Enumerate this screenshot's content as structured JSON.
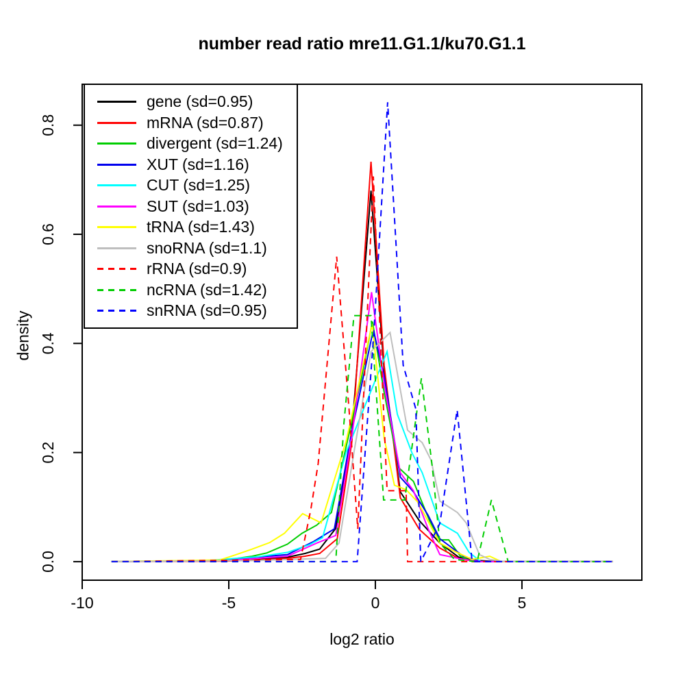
{
  "title": "number read ratio mre11.G1.1/ku70.G1.1",
  "chart_data": {
    "type": "line",
    "title": "number read ratio mre11.G1.1/ku70.G1.1",
    "xlabel": "log2 ratio",
    "ylabel": "density",
    "xlim": [
      -10,
      9.09
    ],
    "ylim": [
      -0.034,
      0.875
    ],
    "x_ticks": [
      {
        "v": -10,
        "label": "-10"
      },
      {
        "v": -5,
        "label": "-5"
      },
      {
        "v": 0,
        "label": "0"
      },
      {
        "v": 5,
        "label": "5"
      }
    ],
    "y_ticks": [
      {
        "v": 0,
        "label": "0.0"
      },
      {
        "v": 0.2,
        "label": "0.2"
      },
      {
        "v": 0.4,
        "label": "0.4"
      },
      {
        "v": 0.6,
        "label": "0.6"
      },
      {
        "v": 0.8,
        "label": "0.8"
      }
    ],
    "grid": false,
    "legend_position": "top-left",
    "axis_color": "#000000",
    "series": [
      {
        "name": "gene",
        "sd": 0.95,
        "label": "gene (sd=0.95)",
        "color": "#000000",
        "dashed": false,
        "points": [
          [
            -9,
            0
          ],
          [
            -5,
            0.002
          ],
          [
            -4,
            0.005
          ],
          [
            -3,
            0.008
          ],
          [
            -2.4,
            0.015
          ],
          [
            -1.9,
            0.023
          ],
          [
            -1.35,
            0.061
          ],
          [
            -0.8,
            0.24
          ],
          [
            -0.15,
            0.68
          ],
          [
            0.3,
            0.35
          ],
          [
            0.85,
            0.128
          ],
          [
            1.5,
            0.075
          ],
          [
            2.2,
            0.034
          ],
          [
            2.85,
            0.008
          ],
          [
            3.5,
            0.002
          ],
          [
            4.2,
            0
          ],
          [
            8.1,
            0
          ]
        ]
      },
      {
        "name": "mRNA",
        "sd": 0.87,
        "label": "mRNA (sd=0.87)",
        "color": "#ff0000",
        "dashed": false,
        "points": [
          [
            -9,
            0
          ],
          [
            -5,
            0.001
          ],
          [
            -4,
            0.003
          ],
          [
            -3,
            0.006
          ],
          [
            -2.4,
            0.01
          ],
          [
            -1.9,
            0.015
          ],
          [
            -1.3,
            0.042
          ],
          [
            -0.8,
            0.22
          ],
          [
            -0.15,
            0.733
          ],
          [
            0.3,
            0.36
          ],
          [
            0.85,
            0.117
          ],
          [
            1.5,
            0.059
          ],
          [
            2.2,
            0.025
          ],
          [
            2.9,
            0.004
          ],
          [
            3.6,
            0
          ],
          [
            8.1,
            0
          ]
        ]
      },
      {
        "name": "divergent",
        "sd": 1.24,
        "label": "divergent (sd=1.24)",
        "color": "#00cd00",
        "dashed": false,
        "points": [
          [
            -9,
            0
          ],
          [
            -5.5,
            0.002
          ],
          [
            -5,
            0.004
          ],
          [
            -4.2,
            0.01
          ],
          [
            -3.7,
            0.016
          ],
          [
            -3,
            0.032
          ],
          [
            -2.5,
            0.052
          ],
          [
            -2,
            0.067
          ],
          [
            -1.5,
            0.09
          ],
          [
            -1,
            0.21
          ],
          [
            -0.5,
            0.33
          ],
          [
            -0.1,
            0.44
          ],
          [
            0.3,
            0.31
          ],
          [
            0.8,
            0.172
          ],
          [
            1.3,
            0.147
          ],
          [
            1.85,
            0.075
          ],
          [
            2.2,
            0.04
          ],
          [
            2.5,
            0.04
          ],
          [
            2.9,
            0.01
          ],
          [
            3.3,
            0
          ],
          [
            8.1,
            0
          ]
        ]
      },
      {
        "name": "XUT",
        "sd": 1.16,
        "label": "XUT (sd=1.16)",
        "color": "#0000ee",
        "dashed": false,
        "points": [
          [
            -9,
            0
          ],
          [
            -5,
            0.002
          ],
          [
            -4.1,
            0.008
          ],
          [
            -3,
            0.013
          ],
          [
            -2.1,
            0.037
          ],
          [
            -1.4,
            0.06
          ],
          [
            -0.8,
            0.24
          ],
          [
            -0.07,
            0.425
          ],
          [
            0.3,
            0.34
          ],
          [
            0.85,
            0.155
          ],
          [
            1.3,
            0.128
          ],
          [
            1.8,
            0.085
          ],
          [
            2.2,
            0.042
          ],
          [
            3,
            0.01
          ],
          [
            3.6,
            0
          ],
          [
            8.1,
            0
          ]
        ]
      },
      {
        "name": "CUT",
        "sd": 1.25,
        "label": "CUT (sd=1.25)",
        "color": "#00ffff",
        "dashed": false,
        "points": [
          [
            -9,
            0
          ],
          [
            -5.7,
            0.002
          ],
          [
            -5,
            0.005
          ],
          [
            -4,
            0.009
          ],
          [
            -3,
            0.017
          ],
          [
            -2.25,
            0.031
          ],
          [
            -1.8,
            0.044
          ],
          [
            -1,
            0.2
          ],
          [
            -0.4,
            0.28
          ],
          [
            0.4,
            0.385
          ],
          [
            0.75,
            0.27
          ],
          [
            1.25,
            0.199
          ],
          [
            1.6,
            0.163
          ],
          [
            2.2,
            0.071
          ],
          [
            2.8,
            0.052
          ],
          [
            3.2,
            0.017
          ],
          [
            3.6,
            0
          ],
          [
            8.1,
            0
          ]
        ]
      },
      {
        "name": "SUT",
        "sd": 1.03,
        "label": "SUT (sd=1.03)",
        "color": "#ff00ff",
        "dashed": false,
        "points": [
          [
            -9,
            0
          ],
          [
            -5,
            0.002
          ],
          [
            -4,
            0.006
          ],
          [
            -3,
            0.01
          ],
          [
            -2,
            0.034
          ],
          [
            -1.35,
            0.048
          ],
          [
            -0.8,
            0.23
          ],
          [
            -0.13,
            0.494
          ],
          [
            0.3,
            0.325
          ],
          [
            0.85,
            0.163
          ],
          [
            1.3,
            0.13
          ],
          [
            1.8,
            0.06
          ],
          [
            2.2,
            0.013
          ],
          [
            3,
            0.004
          ],
          [
            3.6,
            0
          ],
          [
            8.1,
            0
          ]
        ]
      },
      {
        "name": "tRNA",
        "sd": 1.43,
        "label": "tRNA (sd=1.43)",
        "color": "#ffff00",
        "dashed": false,
        "points": [
          [
            -9,
            0
          ],
          [
            -5.3,
            0.003
          ],
          [
            -4.8,
            0.012
          ],
          [
            -4.2,
            0.023
          ],
          [
            -3.6,
            0.035
          ],
          [
            -3.1,
            0.052
          ],
          [
            -2.48,
            0.088
          ],
          [
            -1.85,
            0.071
          ],
          [
            -1,
            0.22
          ],
          [
            -0.11,
            0.436
          ],
          [
            0.3,
            0.226
          ],
          [
            0.65,
            0.14
          ],
          [
            1.05,
            0.132
          ],
          [
            1.45,
            0.109
          ],
          [
            2.2,
            0.034
          ],
          [
            2.7,
            0.019
          ],
          [
            3.3,
            0.004
          ],
          [
            3.9,
            0.01
          ],
          [
            4.3,
            0
          ],
          [
            8.1,
            0
          ]
        ]
      },
      {
        "name": "snoRNA",
        "sd": 1.1,
        "label": "snoRNA (sd=1.1)",
        "color": "#bebebe",
        "dashed": false,
        "points": [
          [
            -9,
            0
          ],
          [
            -4,
            0.002
          ],
          [
            -3,
            0.004
          ],
          [
            -1.7,
            0.006
          ],
          [
            -1.24,
            0.034
          ],
          [
            -0.73,
            0.2
          ],
          [
            -0.15,
            0.385
          ],
          [
            0.5,
            0.42
          ],
          [
            1.1,
            0.241
          ],
          [
            1.6,
            0.218
          ],
          [
            1.9,
            0.186
          ],
          [
            2.2,
            0.111
          ],
          [
            2.8,
            0.09
          ],
          [
            3.1,
            0.071
          ],
          [
            3.55,
            0.013
          ],
          [
            3.9,
            0.004
          ],
          [
            4.4,
            0
          ],
          [
            8.1,
            0
          ]
        ]
      },
      {
        "name": "rRNA",
        "sd": 0.9,
        "label": "rRNA (sd=0.9)",
        "color": "#ff0000",
        "dashed": true,
        "points": [
          [
            -9,
            0
          ],
          [
            -2.55,
            0.004
          ],
          [
            -2.2,
            0.096
          ],
          [
            -1.95,
            0.18
          ],
          [
            -1.32,
            0.559
          ],
          [
            -0.9,
            0.28
          ],
          [
            -0.6,
            0.06
          ],
          [
            -0.07,
            0.706
          ],
          [
            0.4,
            0.13
          ],
          [
            1.05,
            0.13
          ],
          [
            1.1,
            0
          ],
          [
            8.1,
            0
          ]
        ]
      },
      {
        "name": "ncRNA",
        "sd": 1.42,
        "label": "ncRNA (sd=1.42)",
        "color": "#00cd00",
        "dashed": true,
        "points": [
          [
            -9,
            0
          ],
          [
            -1.35,
            0
          ],
          [
            -1.08,
            0.25
          ],
          [
            -0.73,
            0.451
          ],
          [
            -0.15,
            0.451
          ],
          [
            0.28,
            0.113
          ],
          [
            1,
            0.113
          ],
          [
            1.57,
            0.336
          ],
          [
            1.95,
            0.17
          ],
          [
            2.2,
            0.034
          ],
          [
            2.7,
            0.004
          ],
          [
            3.47,
            0
          ],
          [
            3.96,
            0.113
          ],
          [
            4.53,
            0
          ],
          [
            8.1,
            0
          ]
        ]
      },
      {
        "name": "snRNA",
        "sd": 0.95,
        "label": "snRNA (sd=0.95)",
        "color": "#0000ff",
        "dashed": true,
        "points": [
          [
            -9,
            0
          ],
          [
            -0.62,
            0
          ],
          [
            -0.05,
            0.42
          ],
          [
            0.42,
            0.842
          ],
          [
            0.95,
            0.36
          ],
          [
            1.38,
            0.28
          ],
          [
            1.55,
            0
          ],
          [
            2.2,
            0.07
          ],
          [
            2.79,
            0.278
          ],
          [
            3.3,
            0
          ],
          [
            8.1,
            0
          ]
        ]
      }
    ]
  }
}
